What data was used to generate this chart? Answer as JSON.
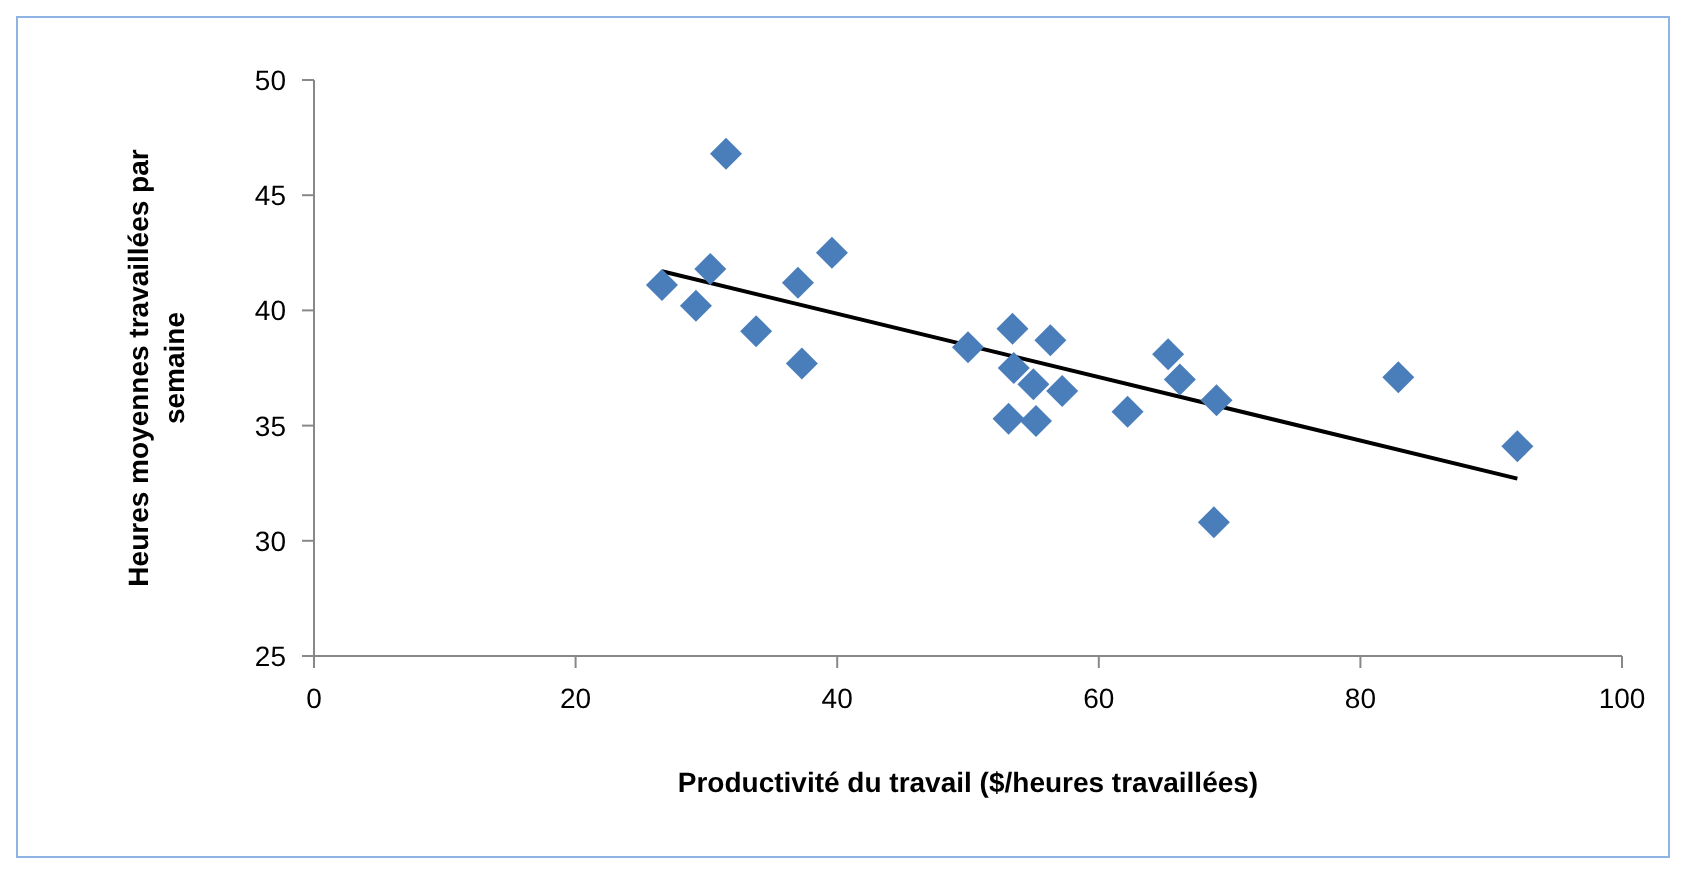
{
  "chart_data": {
    "type": "scatter",
    "xlabel": "Productivité du travail ($/heures travaillées)",
    "ylabel": "Heures moyennes travaillées par semaine",
    "xlim": [
      0,
      100
    ],
    "xticks": [
      0,
      20,
      40,
      60,
      80,
      100
    ],
    "ylim": [
      25,
      50
    ],
    "yticks": [
      25,
      30,
      35,
      40,
      45,
      50
    ],
    "grid": false,
    "legend": false,
    "marker": "diamond",
    "series": [
      {
        "color": "#4a7ebb",
        "x": [
          26.6,
          29.2,
          30.3,
          31.5,
          33.8,
          37.0,
          37.3,
          39.6,
          50.0,
          53.4,
          53.1,
          53.5,
          55.0,
          55.2,
          56.3,
          57.2,
          62.2,
          65.3,
          66.2,
          69.0,
          68.8,
          82.9,
          92.0
        ],
        "values": [
          41.1,
          40.2,
          41.8,
          46.8,
          39.1,
          41.2,
          37.7,
          42.5,
          38.4,
          39.2,
          35.3,
          37.5,
          36.8,
          35.2,
          38.7,
          36.5,
          35.6,
          38.1,
          37.0,
          36.1,
          30.8,
          37.1,
          34.1
        ]
      },
      {
        "type": "line",
        "color": "#000000",
        "marker": "none",
        "line_style": "solid",
        "x": [
          26.6,
          92.0
        ],
        "values": [
          41.7,
          32.7
        ]
      }
    ]
  }
}
